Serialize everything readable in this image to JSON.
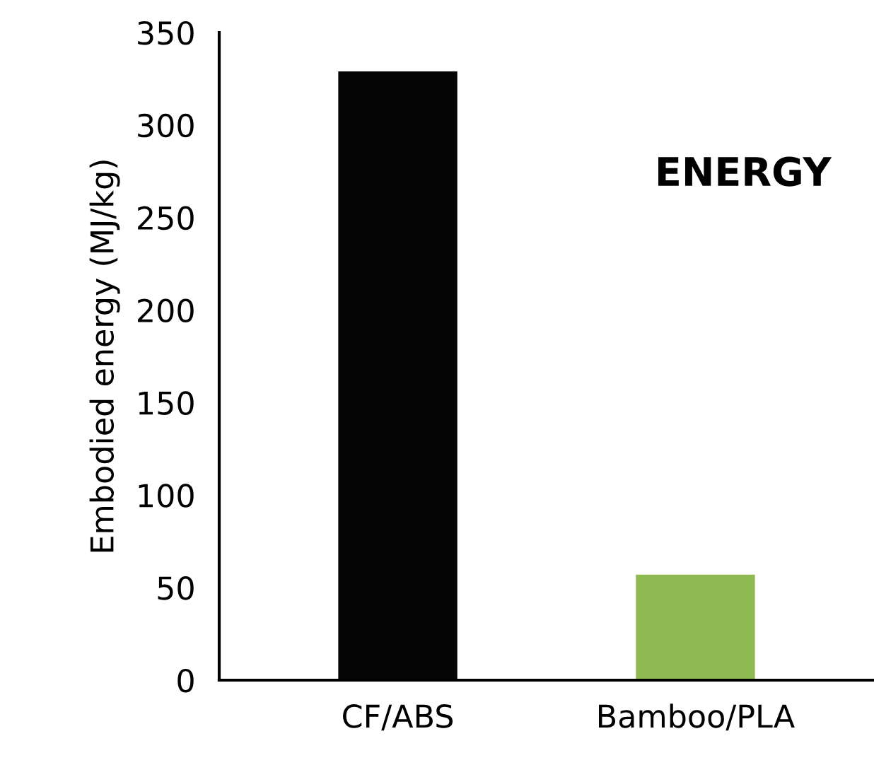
{
  "chart_data": {
    "type": "bar",
    "ylabel": "Embodied energy (MJ/kg)",
    "categories": [
      "CF/ABS",
      "Bamboo/PLA"
    ],
    "values": [
      329,
      57
    ],
    "colors": [
      "#050505",
      "#8fba53"
    ],
    "ylim": [
      0,
      350
    ],
    "yticks": [
      0,
      50,
      100,
      150,
      200,
      250,
      300,
      350
    ],
    "annotations": [
      "ENERGY"
    ],
    "grid": false,
    "legend": false
  }
}
